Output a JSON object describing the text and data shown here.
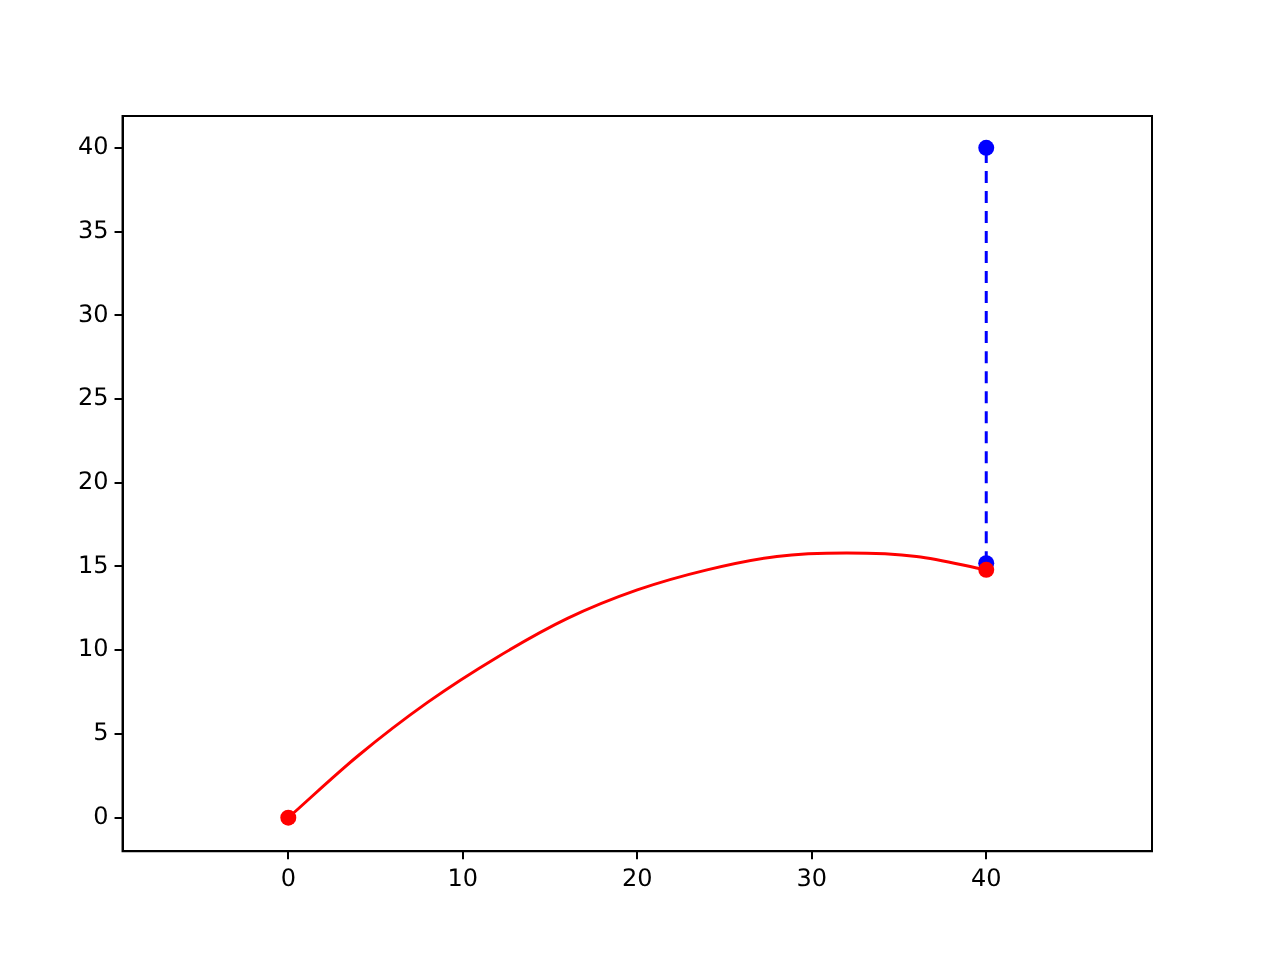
{
  "chart_data": {
    "type": "line",
    "xlim": [
      -9.5,
      49.5
    ],
    "ylim": [
      -2,
      41.9
    ],
    "xticks": [
      0,
      10,
      20,
      30,
      40
    ],
    "yticks": [
      0,
      5,
      10,
      15,
      20,
      25,
      30,
      35,
      40
    ],
    "grid": false,
    "legend": false,
    "series": [
      {
        "color": "#ff0000",
        "marker": "none",
        "line_style": "solid",
        "x": [
          0,
          4,
          8,
          12,
          16,
          20,
          24,
          28,
          32,
          36,
          40
        ],
        "values": [
          0,
          3.7,
          6.9,
          9.6,
          11.9,
          13.6,
          14.8,
          15.6,
          15.8,
          15.6,
          14.8
        ]
      },
      {
        "type": "scatter",
        "color": "#ff0000",
        "marker": "circle",
        "x": [
          0,
          40
        ],
        "values": [
          0,
          14.8
        ]
      },
      {
        "type": "line",
        "color": "#0000ff",
        "marker": "circle",
        "line_style": "dashed",
        "x": [
          40,
          40
        ],
        "values": [
          15.2,
          40
        ]
      }
    ]
  }
}
